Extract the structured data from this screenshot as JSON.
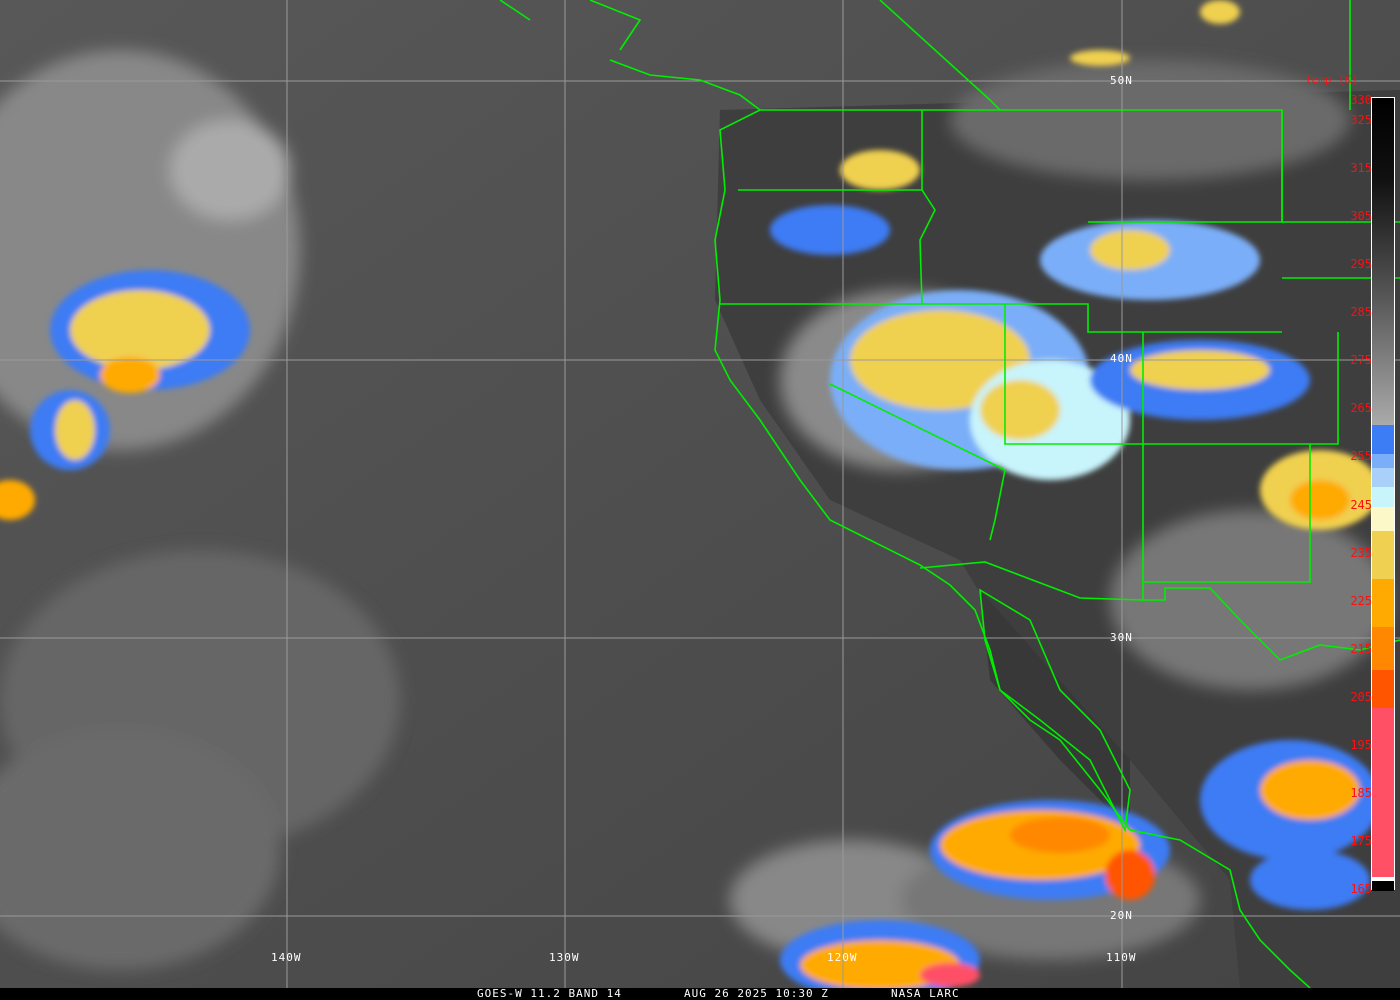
{
  "caption": {
    "satellite": "GOES-W 11.2 BAND 14",
    "datetime": "AUG 26 2025 10:30 Z",
    "source": "NASA LARC"
  },
  "grid": {
    "latitudes": [
      "50N",
      "40N",
      "30N",
      "20N"
    ],
    "longitudes": [
      "140W",
      "130W",
      "120W",
      "110W"
    ],
    "line_color": "#9a9a9a",
    "border_color": "#00ff00"
  },
  "colorbar": {
    "title": "Temp [K]",
    "labels": [
      "330",
      "325",
      "315",
      "305",
      "295",
      "285",
      "275",
      "265",
      "255",
      "245",
      "235",
      "225",
      "215",
      "205",
      "195",
      "185",
      "175",
      "165"
    ],
    "range_K": [
      330,
      165
    ],
    "stops": [
      {
        "from": 330,
        "to": 262,
        "color": "gradient-black-to-gray"
      },
      {
        "from": 262,
        "to": 256,
        "color": "#3c7cf4"
      },
      {
        "from": 256,
        "to": 253,
        "color": "#7aaef8"
      },
      {
        "from": 253,
        "to": 249,
        "color": "#a8d0f8"
      },
      {
        "from": 249,
        "to": 245,
        "color": "#c8f4fc"
      },
      {
        "from": 245,
        "to": 240,
        "color": "#fcf8c8"
      },
      {
        "from": 240,
        "to": 230,
        "color": "#f0d050"
      },
      {
        "from": 230,
        "to": 220,
        "color": "#ffaa00"
      },
      {
        "from": 220,
        "to": 211,
        "color": "#ff8800"
      },
      {
        "from": 211,
        "to": 203,
        "color": "#ff5500"
      },
      {
        "from": 203,
        "to": 168,
        "color": "#ff5066"
      },
      {
        "from": 168,
        "to": 167,
        "color": "#ffffff"
      },
      {
        "from": 167,
        "to": 165,
        "color": "#000000"
      }
    ]
  }
}
